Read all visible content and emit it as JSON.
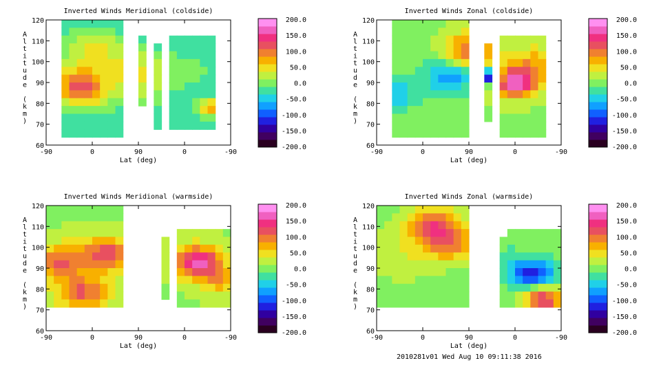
{
  "colors": {
    "background": "#ffffff",
    "colorbar": [
      "#2a0020",
      "#400060",
      "#3000a0",
      "#2020e0",
      "#1060ff",
      "#10a0ff",
      "#20d0e8",
      "#40e0a0",
      "#80f060",
      "#c0f040",
      "#f0e020",
      "#f8b000",
      "#f08030",
      "#e85060",
      "#f03080",
      "#f060c0",
      "#ff90f0"
    ]
  },
  "footer_text": "2010281v01 Wed Aug 10 09:11:38 2016",
  "chart_data": [
    {
      "type": "heatmap",
      "title": "Inverted Winds Meridional (coldside)",
      "xlabel": "Lat (deg)",
      "ylabel": "Altitude (km)",
      "x_tick_labels": [
        "-90",
        "0",
        "90",
        "0",
        "-90"
      ],
      "y_ticks": [
        60,
        70,
        80,
        90,
        100,
        110,
        120
      ],
      "ylim": [
        60,
        120
      ],
      "colorbar": {
        "ticks": [
          "200.0",
          "150.0",
          "100.0",
          "50.0",
          "0.0",
          "-50.0",
          "-100.0",
          "-150.0",
          "-200.0"
        ],
        "range": [
          -200,
          200
        ]
      }
    },
    {
      "type": "heatmap",
      "title": "Inverted Winds Zonal (coldside)",
      "xlabel": "Lat (deg)",
      "ylabel": "Altitude (km)",
      "x_tick_labels": [
        "-90",
        "0",
        "90",
        "0",
        "-90"
      ],
      "y_ticks": [
        60,
        70,
        80,
        90,
        100,
        110,
        120
      ],
      "ylim": [
        60,
        120
      ],
      "colorbar": {
        "ticks": [
          "200.0",
          "150.0",
          "100.0",
          "50.0",
          "0.0",
          "-50.0",
          "-100.0",
          "-150.0",
          "-200.0"
        ],
        "range": [
          -200,
          200
        ]
      }
    },
    {
      "type": "heatmap",
      "title": "Inverted Winds Meridional (warmside)",
      "xlabel": "Lat (deg)",
      "ylabel": "Altitude (km)",
      "x_tick_labels": [
        "-90",
        "0",
        "90",
        "0",
        "-90"
      ],
      "y_ticks": [
        60,
        70,
        80,
        90,
        100,
        110,
        120
      ],
      "ylim": [
        60,
        120
      ],
      "colorbar": {
        "ticks": [
          "200.0",
          "150.0",
          "100.0",
          "50.0",
          "0.0",
          "-50.0",
          "-100.0",
          "-150.0",
          "-200.0"
        ],
        "range": [
          -200,
          200
        ]
      }
    },
    {
      "type": "heatmap",
      "title": "Inverted Winds Zonal (warmside)",
      "xlabel": "Lat (deg)",
      "ylabel": "Altitude (km)",
      "x_tick_labels": [
        "-90",
        "0",
        "90",
        "0",
        "-90"
      ],
      "y_ticks": [
        60,
        70,
        80,
        90,
        100,
        110,
        120
      ],
      "ylim": [
        60,
        120
      ],
      "colorbar": {
        "ticks": [
          "200.0",
          "150.0",
          "100.0",
          "50.0",
          "0.0",
          "-50.0",
          "-100.0",
          "-150.0",
          "-200.0"
        ],
        "range": [
          -200,
          200
        ]
      }
    }
  ]
}
